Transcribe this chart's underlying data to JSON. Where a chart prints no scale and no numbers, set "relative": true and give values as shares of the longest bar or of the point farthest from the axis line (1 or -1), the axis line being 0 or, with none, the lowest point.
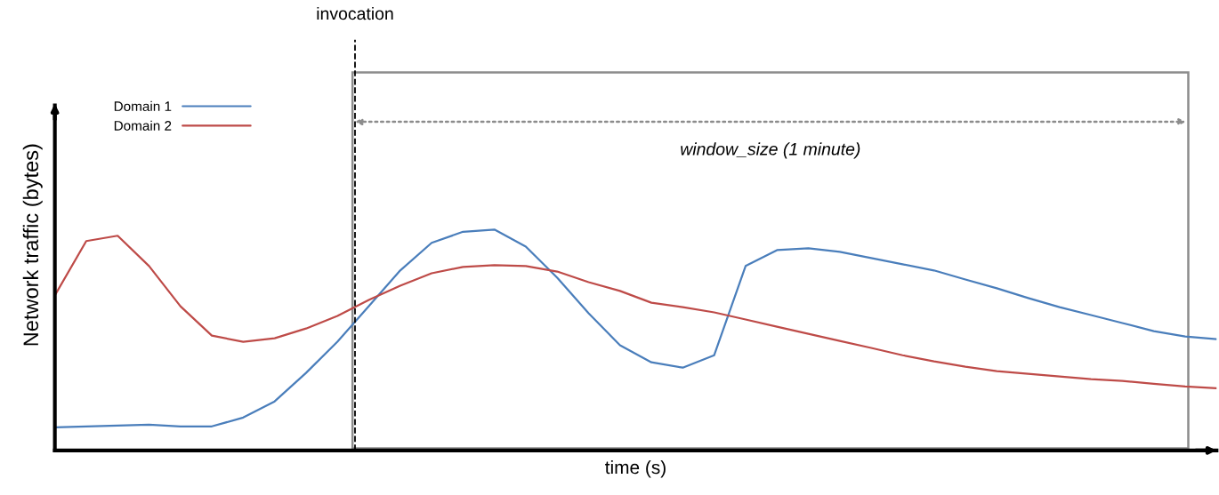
{
  "chart_data": {
    "type": "line",
    "relative": true,
    "xlabel": "time (s)",
    "ylabel": "Network traffic (bytes)",
    "legend": "top left",
    "annotations": [
      "invocation",
      "window_size (1 minute)"
    ],
    "categories": [
      null,
      null,
      null,
      null,
      null,
      null,
      null,
      null,
      null,
      null,
      null,
      null,
      null,
      null,
      null,
      null,
      null,
      null,
      null,
      null,
      null,
      null,
      null,
      null,
      null,
      null,
      null,
      null,
      null,
      null,
      null,
      null,
      null,
      null,
      null,
      null,
      null,
      null
    ],
    "series": [
      {
        "name": "Domain 1",
        "color": "#4a7ebb",
        "values": [
          0.105,
          0.109,
          0.113,
          0.117,
          0.109,
          0.109,
          0.149,
          0.222,
          0.351,
          0.492,
          0.653,
          0.815,
          0.94,
          0.99,
          1.0,
          0.923,
          0.782,
          0.621,
          0.476,
          0.399,
          0.375,
          0.431,
          0.835,
          0.907,
          0.915,
          0.899,
          0.871,
          0.843,
          0.815,
          0.774,
          0.734,
          0.69,
          0.649,
          0.613,
          0.577,
          0.54,
          0.516,
          0.504
        ]
      },
      {
        "name": "Domain 2",
        "color": "#be4b48",
        "values": [
          0.702,
          0.948,
          0.972,
          0.835,
          0.653,
          0.52,
          0.492,
          0.508,
          0.552,
          0.609,
          0.681,
          0.746,
          0.802,
          0.831,
          0.839,
          0.835,
          0.81,
          0.762,
          0.722,
          0.669,
          0.649,
          0.625,
          0.593,
          0.56,
          0.528,
          0.496,
          0.464,
          0.431,
          0.403,
          0.379,
          0.359,
          0.347,
          0.335,
          0.323,
          0.315,
          0.302,
          0.29,
          0.282
        ]
      }
    ]
  }
}
